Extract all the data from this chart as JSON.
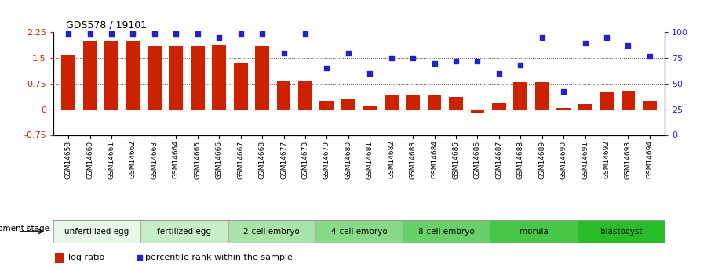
{
  "title": "GDS578 / 19101",
  "samples": [
    "GSM14658",
    "GSM14660",
    "GSM14661",
    "GSM14662",
    "GSM14663",
    "GSM14664",
    "GSM14665",
    "GSM14666",
    "GSM14667",
    "GSM14668",
    "GSM14677",
    "GSM14678",
    "GSM14679",
    "GSM14680",
    "GSM14681",
    "GSM14682",
    "GSM14683",
    "GSM14684",
    "GSM14685",
    "GSM14686",
    "GSM14687",
    "GSM14688",
    "GSM14689",
    "GSM14690",
    "GSM14691",
    "GSM14692",
    "GSM14693",
    "GSM14694"
  ],
  "log_ratio": [
    1.6,
    2.0,
    2.0,
    2.0,
    1.85,
    1.85,
    1.85,
    1.9,
    1.35,
    1.85,
    0.85,
    0.85,
    0.25,
    0.3,
    0.1,
    0.4,
    0.4,
    0.4,
    0.35,
    -0.1,
    0.2,
    0.8,
    0.8,
    0.05,
    0.15,
    0.5,
    0.55,
    0.25
  ],
  "percentile": [
    99,
    99,
    99,
    99,
    99,
    99,
    99,
    95,
    99,
    99,
    80,
    99,
    65,
    80,
    60,
    75,
    75,
    70,
    72,
    72,
    60,
    68,
    95,
    42,
    90,
    95,
    87,
    77
  ],
  "bar_color": "#cc2200",
  "scatter_color": "#2222cc",
  "ylim_left": [
    -0.75,
    2.25
  ],
  "ylim_right": [
    0,
    100
  ],
  "yticks_left": [
    -0.75,
    0,
    0.75,
    1.5,
    2.25
  ],
  "yticks_right": [
    0,
    25,
    50,
    75,
    100
  ],
  "hline_zero_color": "#cc2200",
  "hline_grid_color": "#444444",
  "stages": [
    {
      "label": "unfertilized egg",
      "start": 0,
      "end": 4,
      "color": "#e8f8e8"
    },
    {
      "label": "fertilized egg",
      "start": 4,
      "end": 8,
      "color": "#c8eec8"
    },
    {
      "label": "2-cell embryo",
      "start": 8,
      "end": 12,
      "color": "#a8e4a8"
    },
    {
      "label": "4-cell embryo",
      "start": 12,
      "end": 16,
      "color": "#88da88"
    },
    {
      "label": "8-cell embryo",
      "start": 16,
      "end": 20,
      "color": "#68d068"
    },
    {
      "label": "morula",
      "start": 20,
      "end": 24,
      "color": "#48c648"
    },
    {
      "label": "blastocyst",
      "start": 24,
      "end": 28,
      "color": "#28bc28"
    }
  ],
  "dev_stage_label": "development stage",
  "legend_bar_label": "log ratio",
  "legend_scatter_label": "percentile rank within the sample",
  "bg_color": "#ffffff"
}
